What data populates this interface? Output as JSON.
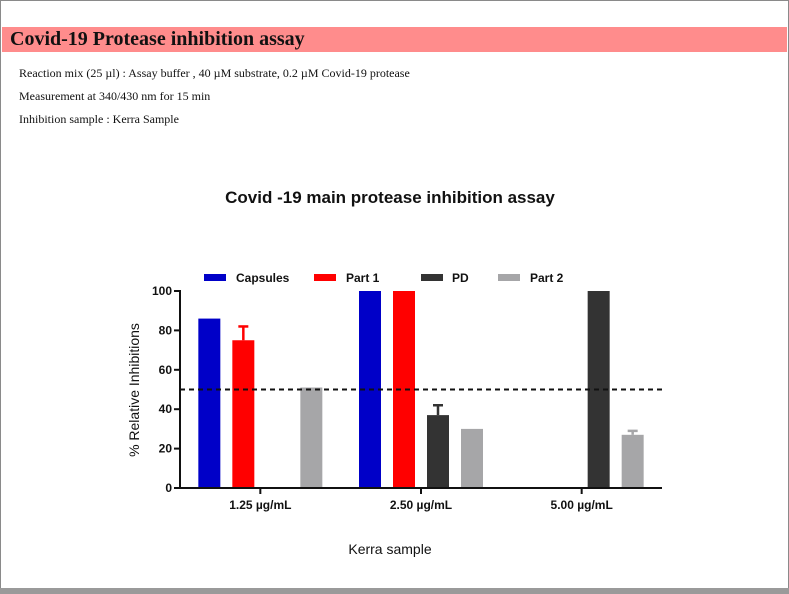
{
  "header": {
    "title": "Covid-19 Protease inhibition assay",
    "lines": [
      "Reaction mix (25 µl) :  Assay buffer , 40 µM substrate, 0.2 µM Covid-19 protease",
      "Measurement at 340/430 nm for 15  min",
      "Inhibition sample  : Kerra Sample"
    ]
  },
  "colors": {
    "header_band": "#ff8c8c",
    "capsules": "#0000c8",
    "part1": "#ff0000",
    "pd": "#333333",
    "part2": "#a6a6a8"
  },
  "chart_data": {
    "type": "bar",
    "title": "Covid -19 main protease inhibition assay",
    "xlabel": "Kerra sample",
    "ylabel": "% Relative Inhibitions",
    "categories": [
      "1.25 µg/mL",
      "2.50 µg/mL",
      "5.00 µg/mL"
    ],
    "ylim": [
      0,
      100
    ],
    "yticks": [
      "0",
      "20",
      "40",
      "60",
      "80",
      "100"
    ],
    "reference_line": 50,
    "legend_position": "top",
    "grid": false,
    "series": [
      {
        "name": "Capsules",
        "color": "#0000c8",
        "values": [
          86,
          100,
          null
        ],
        "errors": [
          0,
          0,
          null
        ]
      },
      {
        "name": "Part 1",
        "color": "#ff0000",
        "values": [
          75,
          100,
          null
        ],
        "errors": [
          7,
          0,
          null
        ]
      },
      {
        "name": "PD",
        "color": "#333333",
        "values": [
          null,
          37,
          100
        ],
        "errors": [
          null,
          5,
          0
        ]
      },
      {
        "name": "Part 2",
        "color": "#a6a6a8",
        "values": [
          51,
          30,
          27
        ],
        "errors": [
          0,
          0,
          2
        ]
      }
    ]
  }
}
